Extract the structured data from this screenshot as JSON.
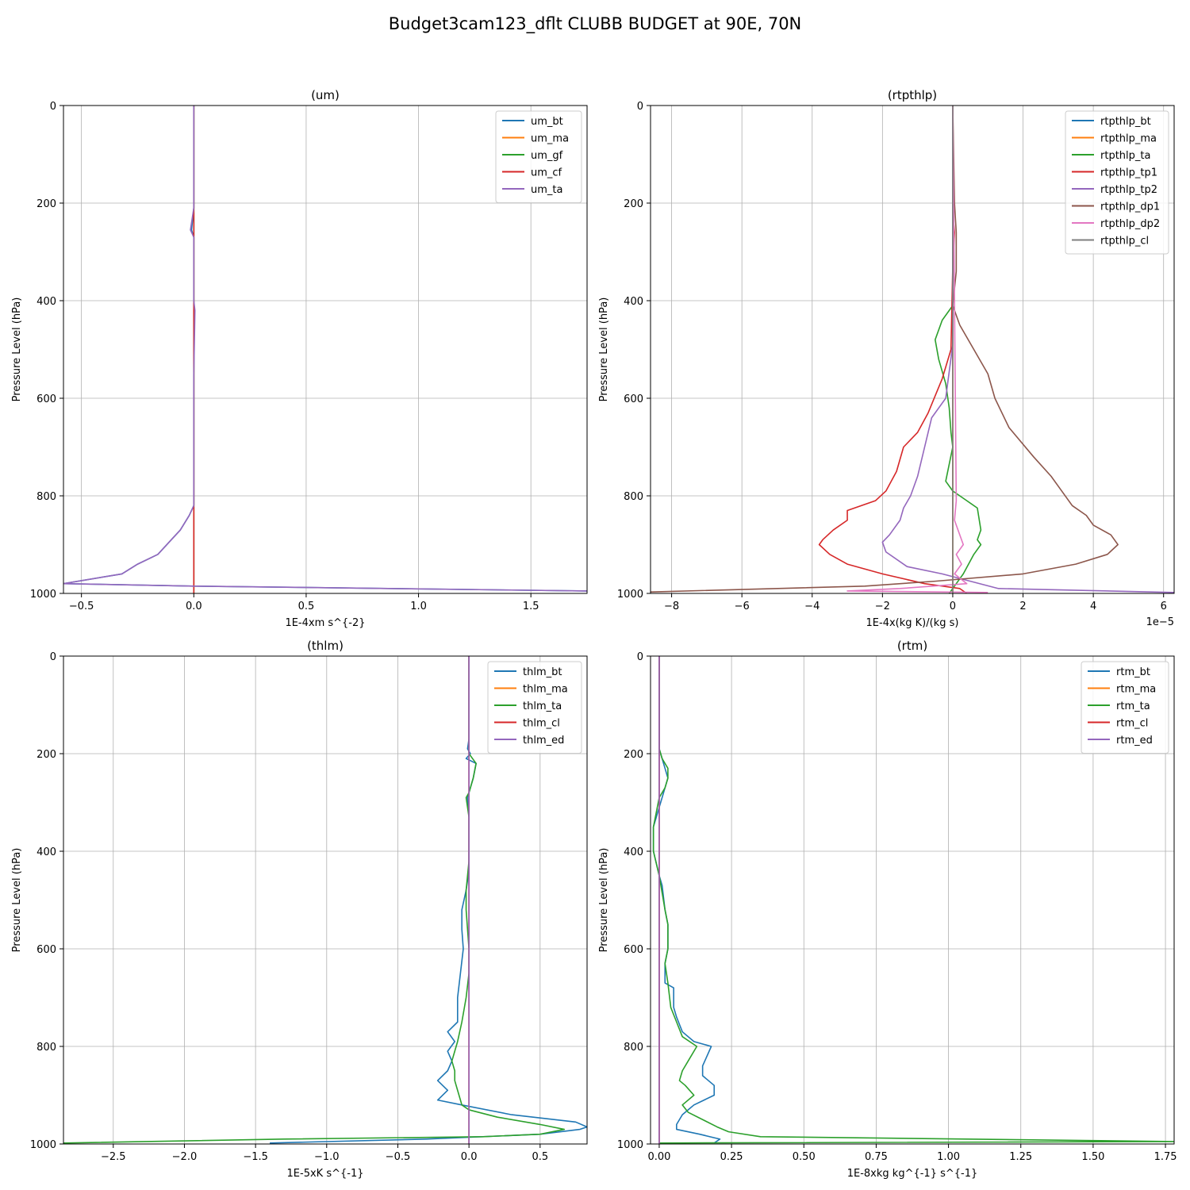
{
  "figure": {
    "title": "Budget3cam123_dflt CLUBB BUDGET at 90E, 70N"
  },
  "chart_data": [
    {
      "type": "line",
      "title": "(um)",
      "xlabel": "1E-4xm s^{-2}",
      "ylabel": "Pressure Level (hPa)",
      "xlim": [
        -0.58,
        1.75
      ],
      "ylim": [
        1000,
        0
      ],
      "xticks": [
        -0.5,
        0.0,
        0.5,
        1.0,
        1.5
      ],
      "xticklabels": [
        "−0.5",
        "0.0",
        "0.5",
        "1.0",
        "1.5"
      ],
      "yticks": [
        0,
        200,
        400,
        600,
        800,
        1000
      ],
      "yticklabels": [
        "0",
        "200",
        "400",
        "600",
        "800",
        "1000"
      ],
      "offset_text": "",
      "grid": true,
      "legend": "top-right",
      "series": [
        {
          "name": "um_bt",
          "color": "#1f77b4",
          "x": [
            0,
            0,
            0.0,
            -0.01,
            0.0,
            0.0,
            0.0,
            0.0,
            0.0,
            0.0,
            -0.02,
            -0.06,
            -0.1,
            -0.16,
            -0.25,
            -0.32,
            -0.58,
            0.0,
            1.75
          ],
          "y": [
            0,
            200,
            210,
            255,
            270,
            400,
            550,
            700,
            780,
            820,
            840,
            870,
            890,
            920,
            940,
            960,
            980,
            985,
            995
          ]
        },
        {
          "name": "um_ma",
          "color": "#ff7f0e",
          "x": [
            0,
            0,
            0,
            0
          ],
          "y": [
            0,
            500,
            980,
            1000
          ]
        },
        {
          "name": "um_gf",
          "color": "#2ca02c",
          "x": [
            0,
            0,
            0,
            0
          ],
          "y": [
            0,
            500,
            980,
            1000
          ]
        },
        {
          "name": "um_cf",
          "color": "#d62728",
          "x": [
            0,
            0,
            0.0,
            0.0,
            0.0,
            0.0,
            0.0
          ],
          "y": [
            0,
            200,
            400,
            420,
            600,
            800,
            1000
          ]
        },
        {
          "name": "um_ta",
          "color": "#9467bd",
          "x": [
            0,
            0,
            0.0,
            -0.015,
            0.0,
            0.0,
            0.005,
            0.0,
            0.0,
            0.0,
            -0.02,
            -0.06,
            -0.1,
            -0.16,
            -0.25,
            -0.32,
            -0.58,
            0.0,
            1.75
          ],
          "y": [
            0,
            200,
            210,
            255,
            270,
            400,
            420,
            550,
            780,
            820,
            840,
            870,
            890,
            920,
            940,
            960,
            980,
            985,
            995
          ]
        }
      ]
    },
    {
      "type": "line",
      "title": "(rtpthlp)",
      "xlabel": "1E-4x(kg K)/(kg s)",
      "ylabel": "Pressure Level (hPa)",
      "xlim": [
        -8.6,
        6.3
      ],
      "ylim": [
        1000,
        0
      ],
      "xticks": [
        -8,
        -6,
        -4,
        -2,
        0,
        2,
        4,
        6
      ],
      "xticklabels": [
        "−8",
        "−6",
        "−4",
        "−2",
        "0",
        "2",
        "4",
        "6"
      ],
      "yticks": [
        0,
        200,
        400,
        600,
        800,
        1000
      ],
      "yticklabels": [
        "0",
        "200",
        "400",
        "600",
        "800",
        "1000"
      ],
      "offset_text": "1e−5",
      "grid": true,
      "legend": "top-right",
      "series": [
        {
          "name": "rtpthlp_bt",
          "color": "#1f77b4",
          "x": [
            0,
            0,
            0,
            0,
            0
          ],
          "y": [
            0,
            400,
            800,
            990,
            1000
          ]
        },
        {
          "name": "rtpthlp_ma",
          "color": "#ff7f0e",
          "x": [
            0,
            0,
            0,
            0
          ],
          "y": [
            0,
            500,
            990,
            1000
          ]
        },
        {
          "name": "rtpthlp_ta",
          "color": "#2ca02c",
          "x": [
            0,
            0,
            -0.3,
            -0.5,
            -0.4,
            -0.2,
            -0.1,
            -0.05,
            0.0,
            -0.2,
            0.0,
            0.4,
            0.7,
            0.8,
            0.7,
            0.8,
            0.6,
            0.3,
            0.1,
            -0.1
          ],
          "y": [
            0,
            410,
            440,
            480,
            520,
            570,
            620,
            670,
            700,
            770,
            790,
            810,
            825,
            870,
            890,
            900,
            920,
            960,
            980,
            1000
          ]
        },
        {
          "name": "rtpthlp_tp1",
          "color": "#d62728",
          "x": [
            0,
            0.05,
            0.0,
            -0.05,
            -0.3,
            -0.7,
            -1.0,
            -1.4,
            -1.6,
            -1.9,
            -2.2,
            -3.0,
            -3.0,
            -3.4,
            -3.7,
            -3.8,
            -3.5,
            -3.0,
            -2.0,
            -0.8,
            0.2,
            0.4
          ],
          "y": [
            220,
            260,
            330,
            500,
            560,
            630,
            670,
            700,
            750,
            790,
            810,
            830,
            850,
            870,
            890,
            900,
            920,
            940,
            960,
            980,
            990,
            1000
          ]
        },
        {
          "name": "rtpthlp_tp2",
          "color": "#9467bd",
          "x": [
            0,
            0.0,
            -0.2,
            -0.6,
            -0.8,
            -1.0,
            -1.2,
            -1.4,
            -1.5,
            -1.8,
            -2.0,
            -1.9,
            -1.3,
            -0.3,
            1.3,
            6.3
          ],
          "y": [
            0,
            490,
            600,
            640,
            700,
            760,
            800,
            825,
            850,
            880,
            895,
            915,
            945,
            960,
            990,
            998
          ]
        },
        {
          "name": "rtpthlp_dp1",
          "color": "#8c564b",
          "x": [
            0,
            0.05,
            0.1,
            0.1,
            0.0,
            0.2,
            0.6,
            1.0,
            1.2,
            1.6,
            2.3,
            2.8,
            3.0,
            3.4,
            3.8,
            4.0,
            4.5,
            4.7,
            4.4,
            3.5,
            2.0,
            -0.5,
            -2.5,
            -8.6
          ],
          "y": [
            0,
            200,
            260,
            340,
            410,
            450,
            500,
            550,
            600,
            660,
            720,
            760,
            780,
            820,
            840,
            860,
            880,
            900,
            920,
            940,
            960,
            975,
            985,
            997
          ]
        },
        {
          "name": "rtpthlp_dp2",
          "color": "#e377c2",
          "x": [
            0,
            0.1,
            0.05,
            0.2,
            0.3,
            0.1,
            0.25,
            0.05,
            0.4,
            -1.5,
            -3.0,
            1.0
          ],
          "y": [
            0,
            810,
            850,
            880,
            900,
            920,
            940,
            960,
            980,
            990,
            995,
            998
          ]
        },
        {
          "name": "rtpthlp_cl",
          "color": "#7f7f7f",
          "x": [
            0,
            0,
            0,
            0
          ],
          "y": [
            0,
            500,
            990,
            1000
          ]
        }
      ]
    },
    {
      "type": "line",
      "title": "(thlm)",
      "xlabel": "1E-5xK s^{-1}",
      "ylabel": "Pressure Level (hPa)",
      "xlim": [
        -2.85,
        0.83
      ],
      "ylim": [
        1000,
        0
      ],
      "xticks": [
        -2.5,
        -2.0,
        -1.5,
        -1.0,
        -0.5,
        0.0,
        0.5
      ],
      "xticklabels": [
        "−2.5",
        "−2.0",
        "−1.5",
        "−1.0",
        "−0.5",
        "0.0",
        "0.5"
      ],
      "yticks": [
        0,
        200,
        400,
        600,
        800,
        1000
      ],
      "yticklabels": [
        "0",
        "200",
        "400",
        "600",
        "800",
        "1000"
      ],
      "offset_text": "",
      "grid": true,
      "legend": "top-right",
      "series": [
        {
          "name": "thlm_bt",
          "color": "#1f77b4",
          "x": [
            0,
            0.0,
            -0.01,
            0.01,
            -0.02,
            0.05,
            0.03,
            0.01,
            -0.01,
            0.0,
            0.0,
            0.0,
            -0.02,
            -0.05,
            -0.05,
            -0.04,
            -0.06,
            -0.08,
            -0.08,
            -0.15,
            -0.1,
            -0.15,
            -0.12,
            -0.15,
            -0.22,
            -0.15,
            -0.22,
            -0.05,
            0.3,
            0.75,
            0.83,
            0.78,
            0.5,
            -0.3,
            -1.4
          ],
          "y": [
            0,
            170,
            190,
            200,
            210,
            220,
            250,
            270,
            290,
            330,
            420,
            440,
            480,
            520,
            560,
            600,
            650,
            700,
            750,
            770,
            790,
            810,
            830,
            850,
            870,
            890,
            910,
            920,
            940,
            955,
            965,
            970,
            980,
            990,
            998
          ]
        },
        {
          "name": "thlm_ma",
          "color": "#ff7f0e",
          "x": [
            0,
            0,
            0,
            0
          ],
          "y": [
            0,
            500,
            990,
            1000
          ]
        },
        {
          "name": "thlm_ta",
          "color": "#2ca02c",
          "x": [
            0,
            0.0,
            0.05,
            0.03,
            0.0,
            -0.02,
            0.0,
            0.0,
            -0.02,
            -0.02,
            -0.01,
            0.0,
            0.0,
            -0.02,
            -0.05,
            -0.08,
            -0.1,
            -0.12,
            -0.1,
            -0.1,
            -0.08,
            -0.06,
            -0.05,
            0.0,
            0.2,
            0.5,
            0.67,
            0.5,
            0.1,
            -1.3,
            -2.85
          ],
          "y": [
            0,
            200,
            220,
            250,
            280,
            290,
            330,
            420,
            480,
            520,
            560,
            600,
            650,
            700,
            750,
            790,
            810,
            830,
            850,
            870,
            890,
            910,
            920,
            930,
            945,
            960,
            970,
            980,
            985,
            990,
            998
          ]
        },
        {
          "name": "thlm_cl",
          "color": "#d62728",
          "x": [
            0,
            0,
            0,
            0
          ],
          "y": [
            0,
            500,
            990,
            1000
          ]
        },
        {
          "name": "thlm_ed",
          "color": "#9467bd",
          "x": [
            0,
            0,
            0,
            0
          ],
          "y": [
            0,
            500,
            990,
            1000
          ]
        }
      ]
    },
    {
      "type": "line",
      "title": "(rtm)",
      "xlabel": "1E-8xkg kg^{-1} s^{-1}",
      "ylabel": "Pressure Level (hPa)",
      "xlim": [
        -0.03,
        1.78
      ],
      "ylim": [
        1000,
        0
      ],
      "xticks": [
        0.0,
        0.25,
        0.5,
        0.75,
        1.0,
        1.25,
        1.5,
        1.75
      ],
      "xticklabels": [
        "0.00",
        "0.25",
        "0.50",
        "0.75",
        "1.00",
        "1.25",
        "1.50",
        "1.75"
      ],
      "yticks": [
        0,
        200,
        400,
        600,
        800,
        1000
      ],
      "yticklabels": [
        "0",
        "200",
        "400",
        "600",
        "800",
        "1000"
      ],
      "offset_text": "",
      "grid": true,
      "legend": "top-right",
      "series": [
        {
          "name": "rtm_bt",
          "color": "#1f77b4",
          "x": [
            0,
            0.0,
            0.01,
            0.02,
            0.03,
            0.02,
            0.01,
            0.0,
            -0.02,
            -0.02,
            0.0,
            0.01,
            0.02,
            0.03,
            0.03,
            0.02,
            0.02,
            0.05,
            0.05,
            0.06,
            0.08,
            0.12,
            0.18,
            0.15,
            0.15,
            0.19,
            0.19,
            0.12,
            0.08,
            0.06,
            0.06,
            0.14,
            0.21,
            0.19
          ],
          "y": [
            0,
            190,
            210,
            230,
            250,
            270,
            290,
            310,
            350,
            400,
            450,
            470,
            520,
            550,
            600,
            630,
            670,
            680,
            720,
            740,
            770,
            790,
            800,
            840,
            860,
            880,
            900,
            920,
            940,
            960,
            970,
            980,
            990,
            998
          ]
        },
        {
          "name": "rtm_ma",
          "color": "#ff7f0e",
          "x": [
            0,
            0,
            0,
            0
          ],
          "y": [
            0,
            500,
            990,
            1000
          ]
        },
        {
          "name": "rtm_ta",
          "color": "#2ca02c",
          "x": [
            0,
            0.0,
            0.01,
            0.03,
            0.03,
            0.02,
            0.0,
            -0.02,
            -0.02,
            0.0,
            0.02,
            0.03,
            0.03,
            0.02,
            0.03,
            0.04,
            0.06,
            0.08,
            0.13,
            0.1,
            0.08,
            0.07,
            0.09,
            0.12,
            0.08,
            0.1,
            0.15,
            0.2,
            0.24,
            0.35,
            1.78,
            0.0
          ],
          "y": [
            0,
            190,
            210,
            230,
            250,
            270,
            290,
            350,
            400,
            450,
            520,
            550,
            600,
            630,
            670,
            720,
            750,
            780,
            800,
            830,
            850,
            870,
            880,
            900,
            920,
            935,
            950,
            965,
            975,
            985,
            995,
            998
          ]
        },
        {
          "name": "rtm_cl",
          "color": "#d62728",
          "x": [
            0,
            0,
            0,
            0
          ],
          "y": [
            0,
            500,
            990,
            1000
          ]
        },
        {
          "name": "rtm_ed",
          "color": "#9467bd",
          "x": [
            0,
            0,
            0,
            0
          ],
          "y": [
            0,
            500,
            990,
            1000
          ]
        }
      ]
    }
  ]
}
